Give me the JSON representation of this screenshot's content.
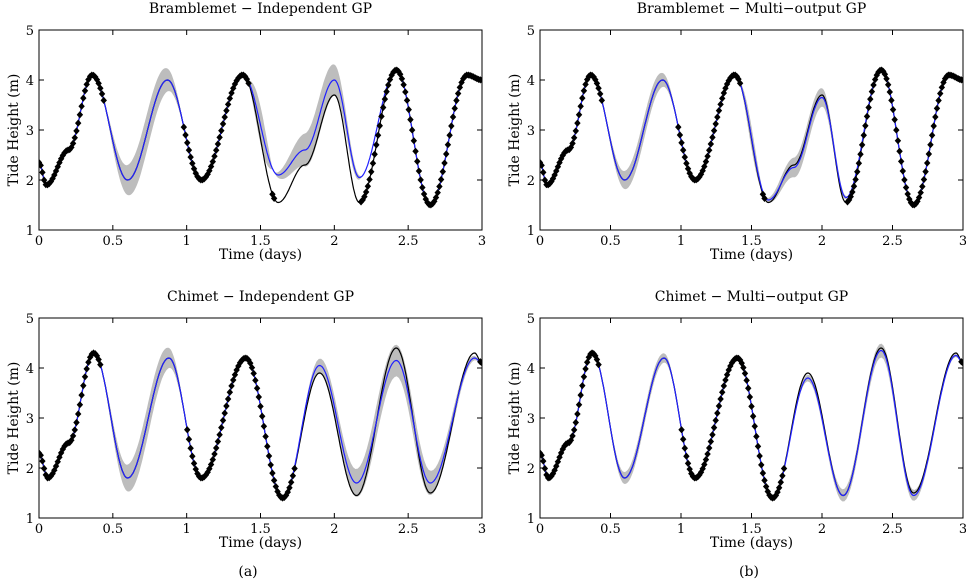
{
  "captions": [
    "(a)",
    "(b)"
  ],
  "chart_data": [
    {
      "type": "line",
      "title": "Bramblemet − Independent GP",
      "xlabel": "Time (days)",
      "ylabel": "Tide Height (m)",
      "xlim": [
        0,
        3
      ],
      "ylim": [
        1,
        5
      ],
      "xticks": [
        0,
        0.5,
        1,
        1.5,
        2,
        2.5,
        3
      ],
      "yticks": [
        1,
        2,
        3,
        4,
        5
      ],
      "grid": false,
      "gaps": [
        [
          0.44,
          0.98
        ],
        [
          1.42,
          1.58
        ],
        [
          1.6,
          2.18
        ]
      ],
      "band_width": 0.35,
      "series": [
        {
          "role": "truth",
          "color": "#000000",
          "x": [
            0,
            0.05,
            0.2,
            0.36,
            0.6,
            0.87,
            1.1,
            1.38,
            1.62,
            1.8,
            2.0,
            2.17,
            2.42,
            2.65,
            2.9,
            3.0
          ],
          "y": [
            2.35,
            1.9,
            2.6,
            4.1,
            2.0,
            4.0,
            2.0,
            4.1,
            1.55,
            2.3,
            3.7,
            1.55,
            4.2,
            1.5,
            4.1,
            4.0
          ]
        },
        {
          "role": "prediction",
          "color": "#2020ff",
          "x": [
            0,
            0.05,
            0.2,
            0.36,
            0.6,
            0.87,
            1.1,
            1.38,
            1.62,
            1.8,
            2.0,
            2.17,
            2.42,
            2.65,
            2.9,
            3.0
          ],
          "y": [
            2.35,
            1.9,
            2.6,
            4.1,
            2.0,
            4.0,
            2.0,
            4.1,
            2.1,
            2.6,
            4.0,
            2.05,
            4.2,
            1.5,
            4.1,
            4.0
          ]
        }
      ]
    },
    {
      "type": "line",
      "title": "Bramblemet − Multi−output GP",
      "xlabel": "Time (days)",
      "ylabel": "Tide Height (m)",
      "xlim": [
        0,
        3
      ],
      "ylim": [
        1,
        5
      ],
      "xticks": [
        0,
        0.5,
        1,
        1.5,
        2,
        2.5,
        3
      ],
      "yticks": [
        1,
        2,
        3,
        4,
        5
      ],
      "grid": false,
      "gaps": [
        [
          0.44,
          0.98
        ],
        [
          1.42,
          1.58
        ],
        [
          1.6,
          2.18
        ]
      ],
      "band_width": 0.2,
      "series": [
        {
          "role": "truth",
          "color": "#000000",
          "x": [
            0,
            0.05,
            0.2,
            0.36,
            0.6,
            0.87,
            1.1,
            1.38,
            1.62,
            1.8,
            2.0,
            2.17,
            2.42,
            2.65,
            2.9,
            3.0
          ],
          "y": [
            2.35,
            1.9,
            2.6,
            4.1,
            2.0,
            4.0,
            2.0,
            4.1,
            1.55,
            2.3,
            3.7,
            1.55,
            4.2,
            1.5,
            4.1,
            4.0
          ]
        },
        {
          "role": "prediction",
          "color": "#2020ff",
          "x": [
            0,
            0.05,
            0.2,
            0.36,
            0.6,
            0.87,
            1.1,
            1.38,
            1.62,
            1.8,
            2.0,
            2.17,
            2.42,
            2.65,
            2.9,
            3.0
          ],
          "y": [
            2.35,
            1.9,
            2.6,
            4.1,
            2.0,
            4.0,
            2.0,
            4.1,
            1.6,
            2.25,
            3.65,
            1.65,
            4.2,
            1.5,
            4.1,
            4.0
          ]
        }
      ]
    },
    {
      "type": "line",
      "title": "Chimet − Independent GP",
      "xlabel": "Time (days)",
      "ylabel": "Tide Height (m)",
      "xlim": [
        0,
        3
      ],
      "ylim": [
        1,
        5
      ],
      "xticks": [
        0,
        0.5,
        1,
        1.5,
        2,
        2.5,
        3
      ],
      "yticks": [
        1,
        2,
        3,
        4,
        5
      ],
      "grid": false,
      "gaps": [
        [
          0.42,
          1.0
        ],
        [
          1.74,
          2.98
        ]
      ],
      "band_width": 0.3,
      "series": [
        {
          "role": "truth",
          "color": "#000000",
          "x": [
            0,
            0.06,
            0.2,
            0.37,
            0.6,
            0.88,
            1.1,
            1.4,
            1.65,
            1.9,
            2.15,
            2.42,
            2.65,
            2.95,
            3.0
          ],
          "y": [
            2.3,
            1.8,
            2.5,
            4.3,
            1.8,
            4.2,
            1.8,
            4.2,
            1.4,
            3.9,
            1.45,
            4.4,
            1.5,
            4.3,
            4.1
          ]
        },
        {
          "role": "prediction",
          "color": "#2020ff",
          "x": [
            0,
            0.06,
            0.2,
            0.37,
            0.6,
            0.88,
            1.1,
            1.4,
            1.65,
            1.9,
            2.15,
            2.42,
            2.65,
            2.95,
            3.0
          ],
          "y": [
            2.3,
            1.8,
            2.5,
            4.3,
            1.8,
            4.2,
            1.8,
            4.2,
            1.4,
            4.05,
            1.7,
            4.15,
            1.7,
            4.2,
            4.1
          ]
        }
      ]
    },
    {
      "type": "line",
      "title": "Chimet − Multi−output GP",
      "xlabel": "Time (days)",
      "ylabel": "Tide Height (m)",
      "xlim": [
        0,
        3
      ],
      "ylim": [
        1,
        5
      ],
      "xticks": [
        0,
        0.5,
        1,
        1.5,
        2,
        2.5,
        3
      ],
      "yticks": [
        1,
        2,
        3,
        4,
        5
      ],
      "grid": false,
      "gaps": [
        [
          0.42,
          1.0
        ],
        [
          1.74,
          2.98
        ]
      ],
      "band_width": 0.12,
      "series": [
        {
          "role": "truth",
          "color": "#000000",
          "x": [
            0,
            0.06,
            0.2,
            0.37,
            0.6,
            0.88,
            1.1,
            1.4,
            1.65,
            1.9,
            2.15,
            2.42,
            2.65,
            2.95,
            3.0
          ],
          "y": [
            2.3,
            1.8,
            2.5,
            4.3,
            1.8,
            4.2,
            1.8,
            4.2,
            1.4,
            3.9,
            1.45,
            4.4,
            1.5,
            4.3,
            4.1
          ]
        },
        {
          "role": "prediction",
          "color": "#2020ff",
          "x": [
            0,
            0.06,
            0.2,
            0.37,
            0.6,
            0.88,
            1.1,
            1.4,
            1.65,
            1.9,
            2.15,
            2.42,
            2.65,
            2.95,
            3.0
          ],
          "y": [
            2.3,
            1.8,
            2.5,
            4.3,
            1.8,
            4.2,
            1.8,
            4.2,
            1.4,
            3.8,
            1.45,
            4.35,
            1.45,
            4.25,
            4.1
          ]
        }
      ]
    }
  ]
}
